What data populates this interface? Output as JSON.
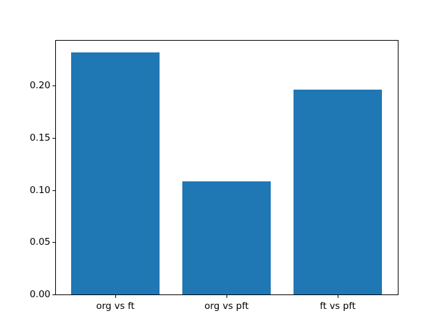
{
  "figure": {
    "background": "#ffffff"
  },
  "chart_data": {
    "type": "bar",
    "categories": [
      "org vs ft",
      "org vs pft",
      "ft vs pft"
    ],
    "values": [
      0.232,
      0.108,
      0.196
    ],
    "title": "",
    "xlabel": "",
    "ylabel": "",
    "ylim": [
      0,
      0.2436
    ],
    "xlim": [
      -0.54,
      2.54
    ],
    "bar_width_units": 0.8,
    "yticks": [
      0,
      0.05,
      0.1,
      0.15,
      0.2
    ],
    "ytick_labels": [
      "0.00",
      "0.05",
      "0.10",
      "0.15",
      "0.20"
    ],
    "bar_color": "#1f77b4",
    "axis_color": "#000000",
    "text_color": "#000000",
    "grid": false,
    "legend_position": "none"
  }
}
